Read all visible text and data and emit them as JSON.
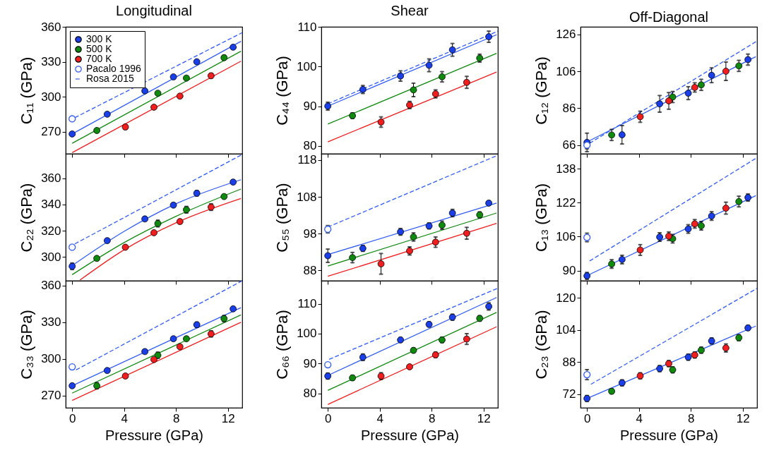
{
  "chart_data": [
    {
      "type": "scatter",
      "title": "Longitudinal",
      "ylabel": "C₁₁ (GPa)",
      "xlim": [
        -0.5,
        13.1
      ],
      "xticks": [
        0,
        4,
        8,
        12
      ],
      "ylim": [
        251,
        360
      ],
      "yticks": [
        270,
        300,
        330,
        360
      ],
      "tick_labels": "y",
      "legend": "top left",
      "series": [
        {
          "name": "300 K",
          "type": "scatter",
          "marker": "circle",
          "color": "#1a3fe8",
          "x": [
            0,
            2.7,
            5.6,
            7.8,
            9.6,
            12.4
          ],
          "values": [
            268,
            285,
            305,
            317,
            330,
            342.5
          ],
          "errors": [
            1,
            null,
            null,
            null,
            1.2,
            1.2
          ]
        },
        {
          "name": "500 K",
          "type": "scatter",
          "marker": "circle",
          "color": "#0f8a0f",
          "x": [
            1.9,
            6.6,
            8.8,
            11.7
          ],
          "values": [
            271,
            303,
            316,
            333.5
          ],
          "errors": [
            1,
            1.2,
            1.2,
            2
          ]
        },
        {
          "name": "700 K",
          "type": "scatter",
          "marker": "circle",
          "color": "#f01e1e",
          "x": [
            4.1,
            6.3,
            8.3,
            10.7
          ],
          "values": [
            274,
            291,
            300.5,
            318
          ],
          "errors": [
            2,
            null,
            null,
            2
          ]
        },
        {
          "name": "Pacalo 1996",
          "type": "scatter",
          "marker": "circle",
          "color": "#2f5cf5",
          "x": [
            0
          ],
          "values": [
            281
          ]
        },
        {
          "name": "Rosa 2015",
          "type": "line",
          "line_style": "dashed",
          "color": "#2f5cf5",
          "x": [
            0.2,
            13.1
          ],
          "values": [
            282,
            355
          ]
        },
        {
          "type": "line",
          "color": "#2f5cf5",
          "x": [
            0,
            13
          ],
          "values": [
            268,
            347.5
          ]
        },
        {
          "type": "line",
          "color": "#0f8a0f",
          "x": [
            0,
            13
          ],
          "values": [
            260,
            339
          ]
        },
        {
          "type": "line",
          "color": "#f01e1e",
          "x": [
            0,
            13
          ],
          "values": [
            252,
            330.5
          ]
        }
      ]
    },
    {
      "type": "scatter",
      "title": "Shear",
      "ylabel": "C₄₄ (GPa)",
      "xlim": [
        -0.5,
        13.1
      ],
      "xticks": [
        0,
        4,
        8,
        12
      ],
      "ylim": [
        78,
        110
      ],
      "yticks": [
        80,
        90,
        100,
        110
      ],
      "tick_labels": "y",
      "series": [
        {
          "type": "scatter",
          "marker": "circle",
          "color": "#1a3fe8",
          "x": [
            0,
            2.7,
            5.6,
            7.8,
            9.6,
            12.4
          ],
          "values": [
            90,
            94.2,
            97.6,
            100.3,
            104.2,
            107.5
          ],
          "errors": [
            1,
            1,
            1.3,
            1.6,
            1.6,
            1.4
          ]
        },
        {
          "type": "scatter",
          "marker": "circle",
          "color": "#0f8a0f",
          "x": [
            1.9,
            6.6,
            8.8,
            11.7
          ],
          "values": [
            87.6,
            94.1,
            97.4,
            102.1
          ],
          "errors": [
            0.7,
            1.7,
            1.3,
            1
          ]
        },
        {
          "type": "scatter",
          "marker": "circle",
          "color": "#f01e1e",
          "x": [
            4.1,
            6.3,
            8.3,
            10.7
          ],
          "values": [
            86,
            90.3,
            93.1,
            96
          ],
          "errors": [
            1.3,
            0.9,
            1,
            1.5
          ]
        },
        {
          "type": "line",
          "line_style": "dashed",
          "color": "#2f5cf5",
          "x": [
            0,
            13.1
          ],
          "values": [
            90.6,
            108.9
          ]
        },
        {
          "type": "line",
          "color": "#2f5cf5",
          "x": [
            0,
            13
          ],
          "values": [
            90,
            108
          ]
        },
        {
          "type": "line",
          "color": "#0f8a0f",
          "x": [
            0,
            13
          ],
          "values": [
            85.5,
            103.3
          ]
        },
        {
          "type": "line",
          "color": "#f01e1e",
          "x": [
            0,
            13
          ],
          "values": [
            81,
            98.6
          ]
        }
      ]
    },
    {
      "type": "scatter",
      "title": "Off-Diagonal",
      "ylabel": "C₁₂ (GPa)",
      "xlim": [
        -0.5,
        13.1
      ],
      "xticks": [
        0,
        4,
        8,
        12
      ],
      "ylim": [
        61.3,
        130.2
      ],
      "yticks": [
        66,
        86,
        106,
        126
      ],
      "tick_labels": "y",
      "series": [
        {
          "type": "scatter",
          "marker": "circle",
          "color": "#1a3fe8",
          "x": [
            0,
            2.7,
            5.6,
            7.8,
            9.6,
            12.4
          ],
          "values": [
            67.5,
            71.6,
            88.4,
            94.2,
            103.9,
            112.4
          ],
          "errors": [
            5,
            5,
            4.5,
            3.5,
            4,
            3
          ]
        },
        {
          "type": "scatter",
          "marker": "circle",
          "color": "#0f8a0f",
          "x": [
            1.9,
            6.6,
            8.8,
            11.7
          ],
          "values": [
            71.5,
            92.1,
            98.7,
            109
          ],
          "errors": [
            3,
            3,
            3,
            3
          ]
        },
        {
          "type": "scatter",
          "marker": "circle",
          "color": "#f01e1e",
          "x": [
            4.1,
            6.3,
            8.3,
            10.7
          ],
          "values": [
            81.4,
            90,
            97.3,
            106.1
          ],
          "errors": [
            3,
            4.5,
            2.5,
            5
          ]
        },
        {
          "type": "scatter",
          "marker": "circle",
          "color": "#2f5cf5",
          "x": [
            0
          ],
          "values": [
            66
          ],
          "errors": [
            2
          ]
        },
        {
          "type": "line",
          "line_style": "dashed",
          "color": "#2f5cf5",
          "x": [
            0.2,
            13.1
          ],
          "values": [
            67,
            122.5
          ]
        },
        {
          "type": "line",
          "color": "#2f5cf5",
          "x": [
            0,
            13
          ],
          "values": [
            67.7,
            114
          ]
        }
      ]
    },
    {
      "type": "scatter",
      "ylabel": "C₂₂ (GPa)",
      "xlim": [
        -0.5,
        13.1
      ],
      "xticks": [
        0,
        4,
        8,
        12
      ],
      "ylim": [
        282,
        378.5
      ],
      "yticks": [
        300,
        320,
        340,
        360
      ],
      "tick_labels": "y",
      "series": [
        {
          "type": "scatter",
          "marker": "circle",
          "color": "#1a3fe8",
          "x": [
            0,
            2.7,
            5.6,
            7.8,
            9.6,
            12.4
          ],
          "values": [
            293,
            312.5,
            329,
            339.5,
            348.5,
            357
          ],
          "errors": [
            2.5,
            1.5,
            1.5,
            1.5,
            2,
            1.5
          ]
        },
        {
          "type": "scatter",
          "marker": "circle",
          "color": "#0f8a0f",
          "x": [
            1.9,
            6.6,
            8.8,
            11.7
          ],
          "values": [
            299,
            325.5,
            336,
            346
          ],
          "errors": [
            1.5,
            2.5,
            2.5,
            1.5
          ]
        },
        {
          "type": "scatter",
          "marker": "circle",
          "color": "#f01e1e",
          "x": [
            4.1,
            6.3,
            8.3,
            10.7
          ],
          "values": [
            307.5,
            318.5,
            327,
            338
          ],
          "errors": [
            1.5,
            1,
            1.5,
            2.5
          ]
        },
        {
          "type": "scatter",
          "marker": "circle",
          "color": "#2f5cf5",
          "x": [
            0
          ],
          "values": [
            307.5
          ]
        },
        {
          "type": "line",
          "line_style": "dashed",
          "color": "#2f5cf5",
          "x": [
            0.2,
            13.1
          ],
          "values": [
            310,
            378
          ]
        },
        {
          "type": "line",
          "color": "#2f5cf5",
          "x": [
            0,
            4,
            8,
            13
          ],
          "values": [
            293.5,
            319.5,
            340.5,
            358.8
          ]
        },
        {
          "type": "line",
          "color": "#0f8a0f",
          "x": [
            0,
            4,
            8,
            13
          ],
          "values": [
            286.6,
            311,
            331,
            351.7
          ]
        },
        {
          "type": "line",
          "color": "#f01e1e",
          "x": [
            0.6,
            4,
            8,
            13
          ],
          "values": [
            282.5,
            305.5,
            326,
            344.5
          ]
        }
      ]
    },
    {
      "type": "scatter",
      "ylabel": "C₅₅ (GPa)",
      "xlim": [
        -0.5,
        13.1
      ],
      "xticks": [
        0,
        4,
        8,
        12
      ],
      "ylim": [
        85.2,
        119.7
      ],
      "yticks": [
        88,
        98,
        108,
        118
      ],
      "tick_labels": "y",
      "series": [
        {
          "type": "scatter",
          "marker": "circle",
          "color": "#1a3fe8",
          "x": [
            0,
            2.7,
            5.6,
            7.8,
            9.6,
            12.4
          ],
          "values": [
            92,
            94,
            98.5,
            100.1,
            103.6,
            106.3
          ],
          "errors": [
            1.8,
            0.8,
            0.9,
            0.8,
            1,
            0.6
          ]
        },
        {
          "type": "scatter",
          "marker": "circle",
          "color": "#0f8a0f",
          "x": [
            1.9,
            6.6,
            8.8,
            11.7
          ],
          "values": [
            91.5,
            97.1,
            100.3,
            103.1
          ],
          "errors": [
            1.4,
            1.1,
            1.1,
            0.8
          ]
        },
        {
          "type": "scatter",
          "marker": "circle",
          "color": "#f01e1e",
          "x": [
            4.1,
            6.3,
            8.3,
            10.7
          ],
          "values": [
            89.8,
            93.3,
            95.7,
            98.1
          ],
          "errors": [
            2.8,
            1.1,
            1.4,
            1.6
          ]
        },
        {
          "type": "scatter",
          "marker": "circle",
          "color": "#2f5cf5",
          "x": [
            0
          ],
          "values": [
            99.2
          ],
          "errors": [
            1
          ]
        },
        {
          "type": "line",
          "line_style": "dashed",
          "color": "#2f5cf5",
          "x": [
            0,
            13.1
          ],
          "values": [
            99.8,
            119.3
          ]
        },
        {
          "type": "line",
          "color": "#2f5cf5",
          "x": [
            0,
            13
          ],
          "values": [
            92.3,
            106.3
          ]
        },
        {
          "type": "line",
          "color": "#0f8a0f",
          "x": [
            0,
            13
          ],
          "values": [
            89.2,
            103.6
          ]
        },
        {
          "type": "line",
          "color": "#f01e1e",
          "x": [
            0,
            13
          ],
          "values": [
            86.4,
            100.8
          ]
        }
      ]
    },
    {
      "type": "scatter",
      "ylabel": "C₁₃ (GPa)",
      "xlim": [
        -0.5,
        13.1
      ],
      "xticks": [
        0,
        4,
        8,
        12
      ],
      "ylim": [
        85.2,
        145
      ],
      "yticks": [
        90,
        106,
        122,
        138
      ],
      "tick_labels": "y",
      "series": [
        {
          "type": "scatter",
          "marker": "circle",
          "color": "#1a3fe8",
          "x": [
            0,
            2.7,
            5.6,
            7.8,
            9.6,
            12.4
          ],
          "values": [
            87.5,
            95.2,
            105.8,
            109.6,
            115.7,
            124.4
          ],
          "errors": [
            1.6,
            2,
            2,
            2,
            2,
            1.7
          ]
        },
        {
          "type": "scatter",
          "marker": "circle",
          "color": "#0f8a0f",
          "x": [
            1.9,
            6.6,
            8.8,
            11.7
          ],
          "values": [
            93.1,
            105,
            111.1,
            122.5
          ],
          "errors": [
            2,
            2,
            2,
            2.5
          ]
        },
        {
          "type": "scatter",
          "marker": "circle",
          "color": "#f01e1e",
          "x": [
            4.1,
            6.3,
            8.3,
            10.7
          ],
          "values": [
            99.7,
            106.2,
            112,
            119.4
          ],
          "errors": [
            2.5,
            2,
            2,
            2.8
          ]
        },
        {
          "type": "scatter",
          "marker": "circle",
          "color": "#2f5cf5",
          "x": [
            0
          ],
          "values": [
            105.6
          ],
          "errors": [
            2
          ]
        },
        {
          "type": "line",
          "line_style": "dashed",
          "color": "#2f5cf5",
          "x": [
            0.2,
            13.1
          ],
          "values": [
            94.5,
            143.2
          ]
        },
        {
          "type": "line",
          "color": "#2f5cf5",
          "x": [
            0,
            13
          ],
          "values": [
            87.6,
            125.3
          ]
        }
      ]
    },
    {
      "type": "scatter",
      "ylabel": "C₃₃ (GPa)",
      "xlabel": "Pressure (GPa)",
      "xlim": [
        -0.5,
        13.1
      ],
      "xticks": [
        0,
        4,
        8,
        12
      ],
      "ylim": [
        260,
        364
      ],
      "yticks": [
        270,
        300,
        330,
        360
      ],
      "series": [
        {
          "type": "scatter",
          "marker": "circle",
          "color": "#1a3fe8",
          "x": [
            0,
            2.7,
            5.6,
            7.8,
            9.6,
            12.4
          ],
          "values": [
            278,
            290.5,
            306,
            316.5,
            328,
            341
          ],
          "errors": [
            1.5,
            1.5,
            1.5,
            1.5,
            2,
            1.5
          ]
        },
        {
          "type": "scatter",
          "marker": "circle",
          "color": "#0f8a0f",
          "x": [
            1.9,
            6.6,
            8.8,
            11.7
          ],
          "values": [
            278,
            303,
            316.5,
            333
          ],
          "errors": [
            2.5,
            2.5,
            1.5,
            2.5
          ]
        },
        {
          "type": "scatter",
          "marker": "circle",
          "color": "#f01e1e",
          "x": [
            4.1,
            6.3,
            8.3,
            10.7
          ],
          "values": [
            286,
            299.5,
            310,
            320.5
          ],
          "errors": [
            1.5,
            null,
            1.5,
            2.5
          ]
        },
        {
          "type": "scatter",
          "marker": "circle",
          "color": "#2f5cf5",
          "x": [
            0
          ],
          "values": [
            293.5
          ]
        },
        {
          "type": "line",
          "line_style": "dashed",
          "color": "#2f5cf5",
          "x": [
            0.3,
            13.1
          ],
          "values": [
            291,
            364
          ]
        },
        {
          "type": "line",
          "color": "#2f5cf5",
          "x": [
            0,
            13
          ],
          "values": [
            278,
            342
          ]
        },
        {
          "type": "line",
          "color": "#0f8a0f",
          "x": [
            0,
            13
          ],
          "values": [
            272,
            336
          ]
        },
        {
          "type": "line",
          "color": "#f01e1e",
          "x": [
            0,
            13
          ],
          "values": [
            266,
            330
          ]
        }
      ]
    },
    {
      "type": "scatter",
      "ylabel": "C₆₆ (GPa)",
      "xlabel": "Pressure (GPa)",
      "xlim": [
        -0.5,
        13.1
      ],
      "xticks": [
        0,
        4,
        8,
        12
      ],
      "ylim": [
        75.2,
        117.7
      ],
      "yticks": [
        80,
        90,
        100,
        110
      ],
      "series": [
        {
          "type": "scatter",
          "marker": "circle",
          "color": "#1a3fe8",
          "x": [
            0,
            2.7,
            5.6,
            7.8,
            9.6,
            12.4
          ],
          "values": [
            85.8,
            92.1,
            97.9,
            103.1,
            105.5,
            109.1
          ],
          "errors": [
            1,
            1.1,
            0.8,
            0.8,
            1,
            1.2
          ]
        },
        {
          "type": "scatter",
          "marker": "circle",
          "color": "#0f8a0f",
          "x": [
            1.9,
            6.6,
            8.8,
            11.7
          ],
          "values": [
            85.2,
            94.4,
            97.9,
            105.1
          ],
          "errors": [
            0.8,
            0.8,
            0.9,
            0.9
          ]
        },
        {
          "type": "scatter",
          "marker": "circle",
          "color": "#f01e1e",
          "x": [
            4.1,
            6.3,
            8.3,
            10.7
          ],
          "values": [
            85.8,
            88.9,
            92.9,
            98.2
          ],
          "errors": [
            1.1,
            0.6,
            0.9,
            1.8
          ]
        },
        {
          "type": "scatter",
          "marker": "circle",
          "color": "#2f5cf5",
          "x": [
            0
          ],
          "values": [
            89.6
          ]
        },
        {
          "type": "line",
          "line_style": "dashed",
          "color": "#2f5cf5",
          "x": [
            0.1,
            13.1
          ],
          "values": [
            91.4,
            115.2
          ]
        },
        {
          "type": "line",
          "color": "#2f5cf5",
          "x": [
            0,
            13
          ],
          "values": [
            86,
            112.1
          ]
        },
        {
          "type": "line",
          "color": "#0f8a0f",
          "x": [
            0,
            13
          ],
          "values": [
            81,
            107.1
          ]
        },
        {
          "type": "line",
          "color": "#f01e1e",
          "x": [
            0,
            13
          ],
          "values": [
            76.3,
            102.3
          ]
        }
      ]
    },
    {
      "type": "scatter",
      "ylabel": "C₂₃ (GPa)",
      "xlabel": "Pressure (GPa)",
      "xlim": [
        -0.5,
        13.1
      ],
      "xticks": [
        0,
        4,
        8,
        12
      ],
      "ylim": [
        65.2,
        128.5
      ],
      "yticks": [
        72,
        88,
        104,
        120
      ],
      "series": [
        {
          "type": "scatter",
          "marker": "circle",
          "color": "#1a3fe8",
          "x": [
            0,
            2.7,
            5.6,
            7.8,
            9.6,
            12.4
          ],
          "values": [
            69.8,
            77.6,
            84.7,
            90.4,
            98.5,
            105
          ],
          "errors": [
            1.5,
            1.5,
            1.5,
            1.5,
            1.5,
            1.2
          ]
        },
        {
          "type": "scatter",
          "marker": "circle",
          "color": "#0f8a0f",
          "x": [
            1.9,
            6.6,
            8.8,
            11.7
          ],
          "values": [
            73.4,
            84.1,
            93.9,
            100.1
          ],
          "errors": [
            1.2,
            1.5,
            1.5,
            1.5
          ]
        },
        {
          "type": "scatter",
          "marker": "circle",
          "color": "#f01e1e",
          "x": [
            4.1,
            6.3,
            8.3,
            10.7
          ],
          "values": [
            81.1,
            87.2,
            91.5,
            95
          ],
          "errors": [
            1.5,
            1.5,
            1.5,
            2
          ]
        },
        {
          "type": "scatter",
          "marker": "circle",
          "color": "#2f5cf5",
          "x": [
            0
          ],
          "values": [
            81.7
          ],
          "errors": [
            2.5
          ]
        },
        {
          "type": "line",
          "line_style": "dashed",
          "color": "#2f5cf5",
          "x": [
            0.3,
            13.1
          ],
          "values": [
            76.9,
            124.7
          ]
        },
        {
          "type": "line",
          "color": "#2f5cf5",
          "x": [
            0,
            13
          ],
          "values": [
            69.8,
            105.9
          ]
        }
      ]
    }
  ]
}
